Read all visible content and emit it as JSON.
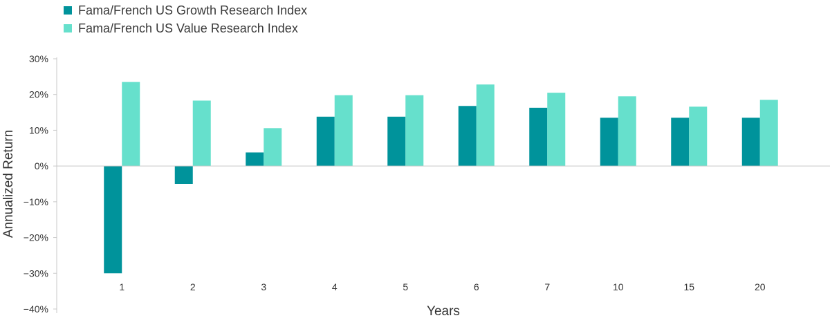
{
  "chart_data": {
    "type": "bar",
    "xlabel": "Years",
    "ylabel": "Annualized Return",
    "categories": [
      "1",
      "2",
      "3",
      "4",
      "5",
      "6",
      "7",
      "10",
      "15",
      "20"
    ],
    "series": [
      {
        "name": "Fama/French US Growth Research Index",
        "color": "#00939b",
        "values": [
          -30,
          -5,
          3.8,
          13.8,
          13.8,
          16.8,
          16.3,
          13.5,
          13.5,
          13.5
        ]
      },
      {
        "name": "Fama/French US Value Research Index",
        "color": "#66e0cc",
        "values": [
          23.5,
          18.3,
          10.6,
          19.8,
          19.8,
          22.8,
          20.5,
          19.5,
          16.6,
          18.5
        ]
      }
    ],
    "ylim": [
      -40,
      30
    ],
    "yticks": [
      30,
      20,
      10,
      0,
      -10,
      -20,
      -30,
      -40
    ],
    "ytick_labels": [
      "30%",
      "20%",
      "10%",
      "0%",
      "−10%",
      "−20%",
      "−30%",
      "−40%"
    ],
    "legend_position": "top-left",
    "grid": false
  }
}
